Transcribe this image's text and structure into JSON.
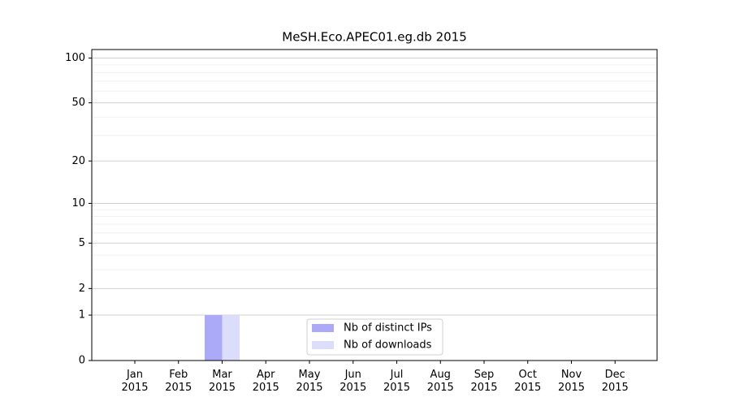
{
  "chart_data": {
    "type": "bar",
    "title": "MeSH.Eco.APEC01.eg.db 2015",
    "categories": [
      "Jan 2015",
      "Feb 2015",
      "Mar 2015",
      "Apr 2015",
      "May 2015",
      "Jun 2015",
      "Jul 2015",
      "Aug 2015",
      "Sep 2015",
      "Oct 2015",
      "Nov 2015",
      "Dec 2015"
    ],
    "series": [
      {
        "name": "Nb of distinct IPs",
        "color": "#aaaaf8",
        "values": [
          0,
          0,
          1,
          0,
          0,
          0,
          0,
          0,
          0,
          0,
          0,
          0
        ]
      },
      {
        "name": "Nb of downloads",
        "color": "#dcdcfb",
        "values": [
          0,
          0,
          1,
          0,
          0,
          0,
          0,
          0,
          0,
          0,
          0,
          0
        ]
      }
    ],
    "yscale": "symlog",
    "ylim": [
      0,
      114
    ],
    "yticks": [
      0,
      1,
      2,
      5,
      10,
      20,
      50,
      100
    ],
    "minor_yticks": [
      3,
      4,
      6,
      7,
      8,
      9,
      30,
      40,
      60,
      70,
      80,
      90
    ],
    "grid": true,
    "legend": "lower center"
  }
}
